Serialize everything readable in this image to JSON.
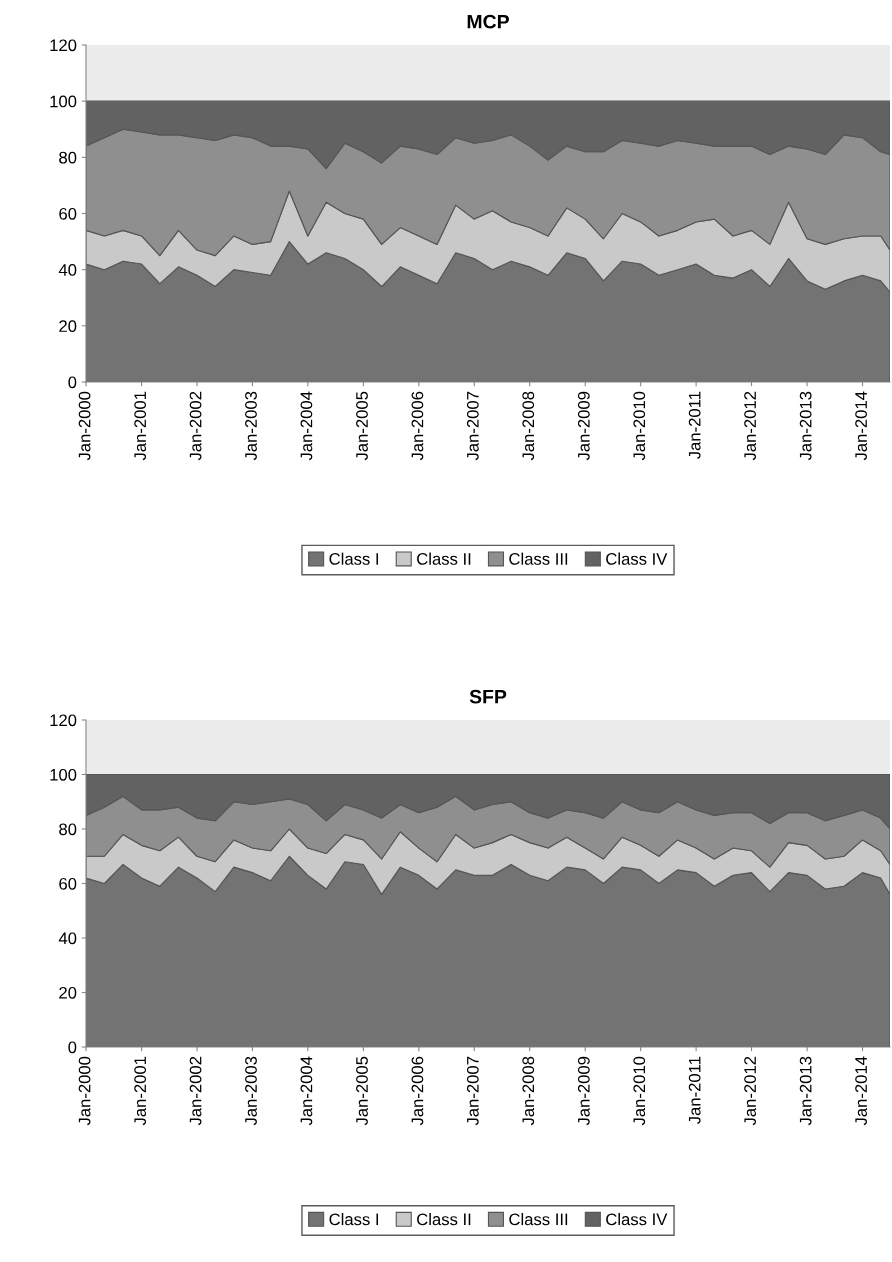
{
  "chart_data": [
    {
      "type": "area",
      "title": "MCP",
      "stacked": true,
      "legend": "bottom",
      "grid": false,
      "x": [
        "2000-01",
        "2000-05",
        "2000-09",
        "2001-01",
        "2001-05",
        "2001-09",
        "2002-01",
        "2002-05",
        "2002-09",
        "2003-01",
        "2003-05",
        "2003-09",
        "2004-01",
        "2004-05",
        "2004-09",
        "2005-01",
        "2005-05",
        "2005-09",
        "2006-01",
        "2006-05",
        "2006-09",
        "2007-01",
        "2007-05",
        "2007-09",
        "2008-01",
        "2008-05",
        "2008-09",
        "2009-01",
        "2009-05",
        "2009-09",
        "2010-01",
        "2010-05",
        "2010-09",
        "2011-01",
        "2011-05",
        "2011-09",
        "2012-01",
        "2012-05",
        "2012-09",
        "2013-01",
        "2013-05",
        "2013-09",
        "2014-01",
        "2014-05",
        "2014-07"
      ],
      "xlim": [
        "2000-01",
        "2014-07"
      ],
      "xticks": [
        {
          "value": "2000-01",
          "label": "Jan-2000"
        },
        {
          "value": "2001-01",
          "label": "Jan-2001"
        },
        {
          "value": "2002-01",
          "label": "Jan-2002"
        },
        {
          "value": "2003-01",
          "label": "Jan-2003"
        },
        {
          "value": "2004-01",
          "label": "Jan-2004"
        },
        {
          "value": "2005-01",
          "label": "Jan-2005"
        },
        {
          "value": "2006-01",
          "label": "Jan-2006"
        },
        {
          "value": "2007-01",
          "label": "Jan-2007"
        },
        {
          "value": "2008-01",
          "label": "Jan-2008"
        },
        {
          "value": "2009-01",
          "label": "Jan-2009"
        },
        {
          "value": "2010-01",
          "label": "Jan-2010"
        },
        {
          "value": "2011-01",
          "label": "Jan-2011"
        },
        {
          "value": "2012-01",
          "label": "Jan-2012"
        },
        {
          "value": "2013-01",
          "label": "Jan-2013"
        },
        {
          "value": "2014-01",
          "label": "Jan-2014"
        }
      ],
      "ylim": [
        0,
        120
      ],
      "yticks": [
        0,
        20,
        40,
        60,
        80,
        100,
        120
      ],
      "series": [
        {
          "name": "Class I",
          "color": "#737373",
          "values": [
            42,
            40,
            43,
            42,
            35,
            41,
            38,
            34,
            40,
            39,
            38,
            50,
            42,
            46,
            44,
            40,
            34,
            41,
            38,
            35,
            46,
            44,
            40,
            43,
            41,
            38,
            46,
            44,
            36,
            43,
            42,
            38,
            40,
            42,
            38,
            37,
            40,
            34,
            44,
            36,
            33,
            36,
            38,
            36,
            32
          ]
        },
        {
          "name": "Class II",
          "color": "#c9c9c9",
          "values": [
            12,
            12,
            11,
            10,
            10,
            13,
            9,
            11,
            12,
            10,
            12,
            18,
            10,
            18,
            16,
            18,
            15,
            14,
            14,
            14,
            17,
            14,
            21,
            14,
            14,
            14,
            16,
            14,
            15,
            17,
            15,
            14,
            14,
            15,
            20,
            15,
            14,
            15,
            20,
            15,
            16,
            15,
            14,
            16,
            15
          ]
        },
        {
          "name": "Class III",
          "color": "#8f8f8f",
          "values": [
            30,
            35,
            36,
            37,
            43,
            34,
            40,
            41,
            36,
            38,
            34,
            16,
            31,
            12,
            25,
            24,
            29,
            29,
            31,
            32,
            24,
            27,
            25,
            31,
            29,
            27,
            22,
            24,
            31,
            26,
            28,
            32,
            32,
            28,
            26,
            32,
            30,
            32,
            20,
            32,
            32,
            37,
            35,
            30,
            34
          ]
        },
        {
          "name": "Class IV",
          "color": "#626262",
          "values": [
            16,
            13,
            10,
            11,
            12,
            12,
            13,
            14,
            12,
            13,
            16,
            16,
            17,
            24,
            15,
            18,
            22,
            16,
            17,
            19,
            13,
            15,
            14,
            12,
            16,
            21,
            16,
            18,
            18,
            14,
            15,
            16,
            14,
            15,
            16,
            16,
            16,
            19,
            16,
            17,
            19,
            12,
            13,
            18,
            19
          ]
        }
      ]
    },
    {
      "type": "area",
      "title": "SFP",
      "stacked": true,
      "legend": "bottom",
      "grid": false,
      "x": [
        "2000-01",
        "2000-05",
        "2000-09",
        "2001-01",
        "2001-05",
        "2001-09",
        "2002-01",
        "2002-05",
        "2002-09",
        "2003-01",
        "2003-05",
        "2003-09",
        "2004-01",
        "2004-05",
        "2004-09",
        "2005-01",
        "2005-05",
        "2005-09",
        "2006-01",
        "2006-05",
        "2006-09",
        "2007-01",
        "2007-05",
        "2007-09",
        "2008-01",
        "2008-05",
        "2008-09",
        "2009-01",
        "2009-05",
        "2009-09",
        "2010-01",
        "2010-05",
        "2010-09",
        "2011-01",
        "2011-05",
        "2011-09",
        "2012-01",
        "2012-05",
        "2012-09",
        "2013-01",
        "2013-05",
        "2013-09",
        "2014-01",
        "2014-05",
        "2014-07"
      ],
      "xlim": [
        "2000-01",
        "2014-07"
      ],
      "xticks": [
        {
          "value": "2000-01",
          "label": "Jan-2000"
        },
        {
          "value": "2001-01",
          "label": "Jan-2001"
        },
        {
          "value": "2002-01",
          "label": "Jan-2002"
        },
        {
          "value": "2003-01",
          "label": "Jan-2003"
        },
        {
          "value": "2004-01",
          "label": "Jan-2004"
        },
        {
          "value": "2005-01",
          "label": "Jan-2005"
        },
        {
          "value": "2006-01",
          "label": "Jan-2006"
        },
        {
          "value": "2007-01",
          "label": "Jan-2007"
        },
        {
          "value": "2008-01",
          "label": "Jan-2008"
        },
        {
          "value": "2009-01",
          "label": "Jan-2009"
        },
        {
          "value": "2010-01",
          "label": "Jan-2010"
        },
        {
          "value": "2011-01",
          "label": "Jan-2011"
        },
        {
          "value": "2012-01",
          "label": "Jan-2012"
        },
        {
          "value": "2013-01",
          "label": "Jan-2013"
        },
        {
          "value": "2014-01",
          "label": "Jan-2014"
        }
      ],
      "ylim": [
        0,
        120
      ],
      "yticks": [
        0,
        20,
        40,
        60,
        80,
        100,
        120
      ],
      "series": [
        {
          "name": "Class I",
          "color": "#737373",
          "values": [
            62,
            60,
            67,
            62,
            59,
            66,
            62,
            57,
            66,
            64,
            61,
            70,
            63,
            58,
            68,
            67,
            56,
            66,
            63,
            58,
            65,
            63,
            63,
            67,
            63,
            61,
            66,
            65,
            60,
            66,
            65,
            60,
            65,
            64,
            59,
            63,
            64,
            57,
            64,
            63,
            58,
            59,
            64,
            62,
            56
          ]
        },
        {
          "name": "Class II",
          "color": "#c9c9c9",
          "values": [
            8,
            10,
            11,
            12,
            13,
            11,
            8,
            11,
            10,
            9,
            11,
            10,
            10,
            13,
            10,
            9,
            13,
            13,
            10,
            10,
            13,
            10,
            12,
            11,
            12,
            12,
            11,
            8,
            9,
            11,
            9,
            10,
            11,
            9,
            10,
            10,
            8,
            9,
            11,
            11,
            11,
            11,
            12,
            10,
            11
          ]
        },
        {
          "name": "Class III",
          "color": "#8f8f8f",
          "values": [
            15,
            18,
            14,
            13,
            15,
            11,
            14,
            15,
            14,
            16,
            18,
            11,
            16,
            12,
            11,
            11,
            15,
            10,
            13,
            20,
            14,
            14,
            14,
            12,
            11,
            11,
            10,
            13,
            15,
            13,
            13,
            16,
            14,
            14,
            16,
            13,
            14,
            16,
            11,
            12,
            14,
            15,
            11,
            12,
            13
          ]
        },
        {
          "name": "Class IV",
          "color": "#626262",
          "values": [
            15,
            12,
            8,
            13,
            13,
            12,
            16,
            17,
            10,
            11,
            10,
            9,
            11,
            17,
            11,
            13,
            16,
            11,
            14,
            12,
            8,
            13,
            11,
            10,
            14,
            16,
            13,
            14,
            16,
            10,
            13,
            14,
            10,
            13,
            15,
            14,
            14,
            18,
            14,
            14,
            17,
            15,
            13,
            16,
            20
          ]
        }
      ]
    }
  ]
}
